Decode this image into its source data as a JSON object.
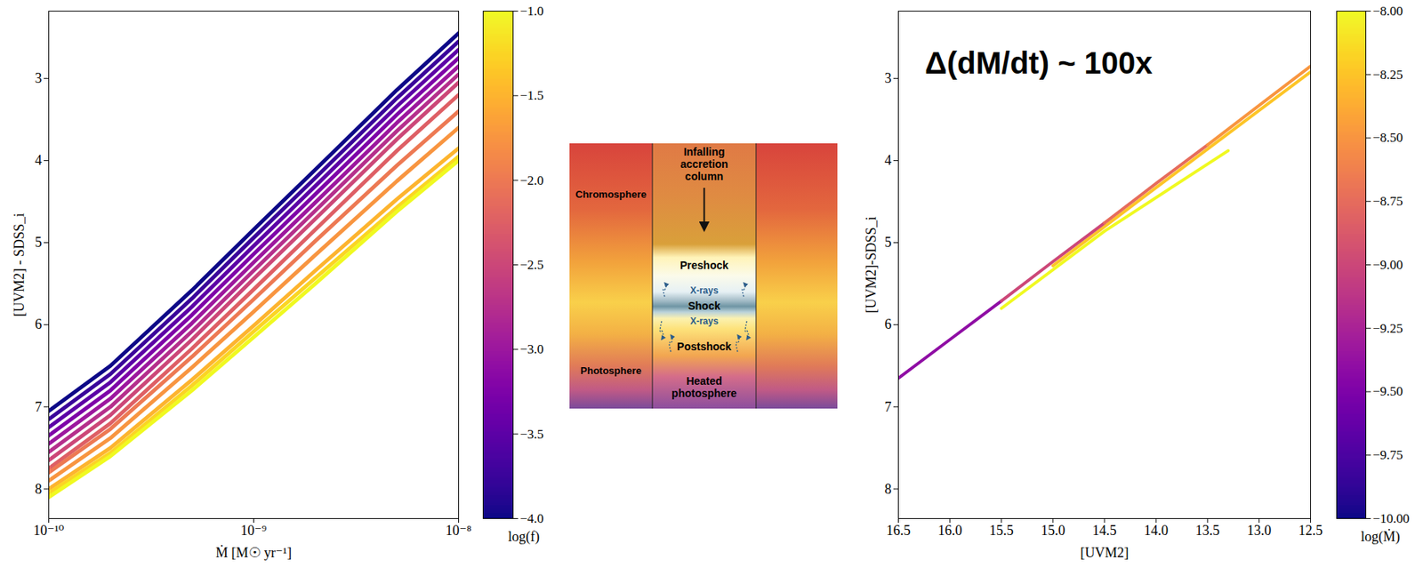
{
  "chart_data": [
    {
      "type": "line",
      "log": "x",
      "xlabel": "Ṁ [M☉ yr⁻¹]",
      "ylabel": "[UVM2] - SDSS_i",
      "x": [
        1e-10,
        2e-10,
        5e-10,
        1e-09,
        2e-09,
        5e-09,
        1e-08
      ],
      "xlim": [
        1e-10,
        1e-08
      ],
      "xticks": [
        {
          "value": 1e-10,
          "label": "10⁻¹⁰"
        },
        {
          "value": 1e-09,
          "label": "10⁻⁹"
        },
        {
          "value": 1e-08,
          "label": "10⁻⁸"
        }
      ],
      "ylim": [
        8.36,
        2.18
      ],
      "yticks": [
        3,
        4,
        5,
        6,
        7,
        8
      ],
      "series": [
        {
          "log_f": -4.0,
          "values": [
            7.05,
            6.5,
            5.58,
            4.84,
            4.11,
            3.14,
            2.45
          ]
        },
        {
          "log_f": -3.75,
          "values": [
            7.15,
            6.6,
            5.68,
            4.94,
            4.21,
            3.24,
            2.55
          ]
        },
        {
          "log_f": -3.5,
          "values": [
            7.25,
            6.7,
            5.78,
            5.04,
            4.31,
            3.34,
            2.65
          ]
        },
        {
          "log_f": -3.25,
          "values": [
            7.35,
            6.8,
            5.88,
            5.14,
            4.41,
            3.44,
            2.75
          ]
        },
        {
          "log_f": -3.0,
          "values": [
            7.45,
            6.9,
            5.98,
            5.24,
            4.51,
            3.54,
            2.85
          ]
        },
        {
          "log_f": -2.75,
          "values": [
            7.55,
            7.0,
            6.08,
            5.34,
            4.61,
            3.64,
            2.95
          ]
        },
        {
          "log_f": -2.5,
          "values": [
            7.65,
            7.1,
            6.18,
            5.44,
            4.71,
            3.74,
            3.05
          ]
        },
        {
          "log_f": -2.25,
          "values": [
            7.75,
            7.2,
            6.29,
            5.57,
            4.84,
            3.88,
            3.2
          ]
        },
        {
          "log_f": -2.0,
          "values": [
            7.8,
            7.27,
            6.39,
            5.69,
            4.98,
            4.06,
            3.4
          ]
        },
        {
          "log_f": -1.75,
          "values": [
            7.9,
            7.38,
            6.52,
            5.84,
            5.15,
            4.25,
            3.6
          ]
        },
        {
          "log_f": -1.5,
          "values": [
            8.0,
            7.5,
            6.67,
            6.01,
            5.34,
            4.47,
            3.85
          ]
        },
        {
          "log_f": -1.25,
          "values": [
            8.05,
            7.56,
            6.74,
            6.08,
            5.43,
            4.57,
            3.95
          ]
        },
        {
          "log_f": -1.0,
          "values": [
            8.1,
            7.6,
            6.8,
            6.15,
            5.5,
            4.62,
            4.0
          ]
        }
      ],
      "colorbar": {
        "label": "log(f)",
        "range": [
          -4,
          -1
        ],
        "ticks": [
          {
            "value": -1,
            "label": "−1.0"
          },
          {
            "value": -1.5,
            "label": "−1.5"
          },
          {
            "value": -2,
            "label": "−2.0"
          },
          {
            "value": -2.5,
            "label": "−2.5"
          },
          {
            "value": -3,
            "label": "−3.0"
          },
          {
            "value": -3.5,
            "label": "−3.5"
          },
          {
            "value": -4,
            "label": "−4.0"
          }
        ]
      }
    },
    {
      "type": "line",
      "xlabel": "[UVM2]",
      "ylabel": "[UVM2]-SDSS_i",
      "xlim": [
        16.5,
        12.5
      ],
      "xticks": [
        16.5,
        {
          "value": 16,
          "label": "16.0"
        },
        15.5,
        {
          "value": 15,
          "label": "15.0"
        },
        14.5,
        {
          "value": 14,
          "label": "14.0"
        },
        13.5,
        {
          "value": 13,
          "label": "13.0"
        },
        12.5
      ],
      "ylim": [
        8.36,
        2.18
      ],
      "yticks": [
        3,
        4,
        5,
        6,
        7,
        8
      ],
      "series": [
        {
          "log_mdot": -8.0,
          "x": [
            15.5,
            14.5,
            13.3
          ],
          "values": [
            5.8,
            4.86,
            3.88
          ]
        },
        {
          "log_mdot": -8.25,
          "x": [
            15.0,
            14.0,
            13.0,
            12.5
          ],
          "values": [
            5.28,
            4.33,
            3.39,
            2.92
          ]
        },
        {
          "log_mdot": -9.4,
          "x": [
            16.5,
            16.0,
            15.5
          ],
          "values": [
            6.65,
            6.18,
            5.71
          ]
        },
        {
          "log_mdot": -9.0,
          "x": [
            15.5,
            15.0,
            14.5
          ],
          "values": [
            5.71,
            5.23,
            4.76
          ]
        },
        {
          "log_mdot": -8.75,
          "x": [
            14.5,
            14.0,
            13.5
          ],
          "values": [
            4.76,
            4.28,
            3.81
          ]
        },
        {
          "log_mdot": -8.5,
          "x": [
            13.5,
            13.0,
            12.5
          ],
          "values": [
            3.81,
            3.33,
            2.85
          ]
        }
      ],
      "annotations": [
        {
          "text": "Δ(dM/dt) ~ 100x"
        }
      ],
      "colorbar": {
        "label": "log(Ṁ)",
        "range": [
          -10,
          -8
        ],
        "ticks": [
          {
            "value": -8,
            "label": "−8.00"
          },
          {
            "value": -8.25,
            "label": "−8.25"
          },
          {
            "value": -8.5,
            "label": "−8.50"
          },
          {
            "value": -8.75,
            "label": "−8.75"
          },
          {
            "value": -9,
            "label": "−9.00"
          },
          {
            "value": -9.25,
            "label": "−9.25"
          },
          {
            "value": -9.5,
            "label": "−9.50"
          },
          {
            "value": -9.75,
            "label": "−9.75"
          },
          {
            "value": -10,
            "label": "−10.00"
          }
        ]
      }
    }
  ],
  "diagram": {
    "column_label": "Infalling accretion column",
    "left_labels": [
      "Chromosphere",
      "Photosphere"
    ],
    "column_layers": [
      "Preshock",
      "X-rays",
      "Shock",
      "X-rays",
      "Postshock",
      "Heated photosphere"
    ]
  }
}
